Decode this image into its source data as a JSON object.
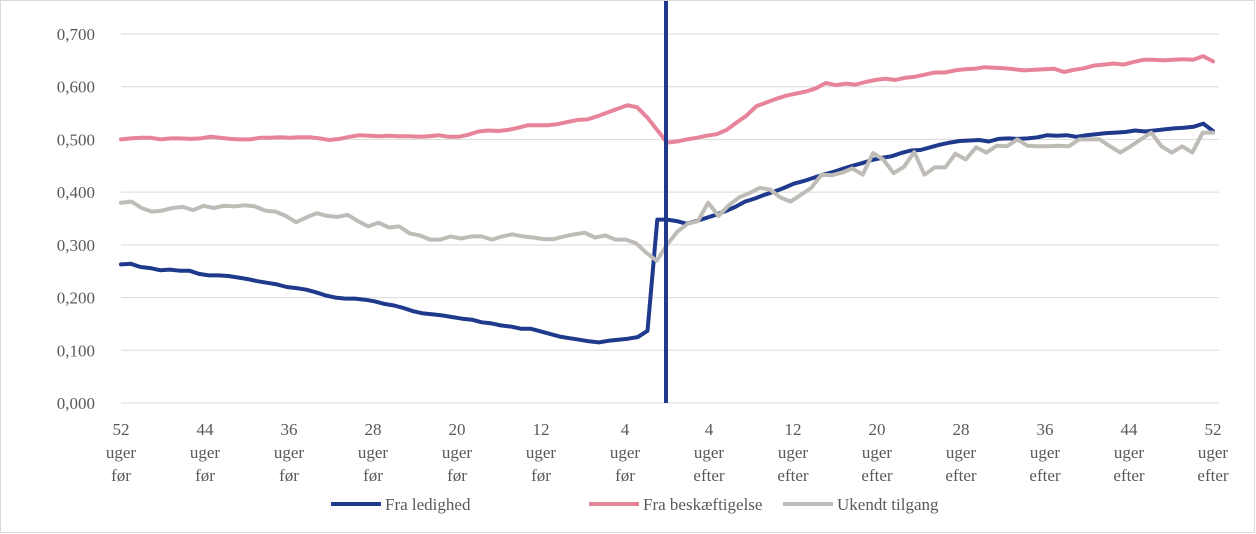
{
  "chart_data": {
    "type": "line",
    "title": "",
    "xlabel": "",
    "ylabel": "",
    "ylim": [
      0,
      0.7
    ],
    "yticks": [
      "0,000",
      "0,100",
      "0,200",
      "0,300",
      "0,400",
      "0,500",
      "0,600",
      "0,700"
    ],
    "grid": true,
    "legend_position": "bottom",
    "x_tick_labels": [
      {
        "num": "52",
        "l1": "uger",
        "l2": "før"
      },
      {
        "num": "44",
        "l1": "uger",
        "l2": "før"
      },
      {
        "num": "36",
        "l1": "uger",
        "l2": "før"
      },
      {
        "num": "28",
        "l1": "uger",
        "l2": "før"
      },
      {
        "num": "20",
        "l1": "uger",
        "l2": "før"
      },
      {
        "num": "12",
        "l1": "uger",
        "l2": "før"
      },
      {
        "num": "4",
        "l1": "uger",
        "l2": "før"
      },
      {
        "num": "4",
        "l1": "uger",
        "l2": "efter"
      },
      {
        "num": "12",
        "l1": "uger",
        "l2": "efter"
      },
      {
        "num": "20",
        "l1": "uger",
        "l2": "efter"
      },
      {
        "num": "28",
        "l1": "uger",
        "l2": "efter"
      },
      {
        "num": "36",
        "l1": "uger",
        "l2": "efter"
      },
      {
        "num": "44",
        "l1": "uger",
        "l2": "efter"
      },
      {
        "num": "52",
        "l1": "uger",
        "l2": "efter"
      }
    ],
    "series": [
      {
        "name": "Fra ledighed",
        "color": "#1f3a8c",
        "values": [
          0.263,
          0.264,
          0.258,
          0.256,
          0.252,
          0.253,
          0.251,
          0.251,
          0.245,
          0.242,
          0.242,
          0.241,
          0.238,
          0.235,
          0.231,
          0.228,
          0.225,
          0.22,
          0.218,
          0.215,
          0.21,
          0.204,
          0.2,
          0.198,
          0.198,
          0.196,
          0.193,
          0.188,
          0.185,
          0.18,
          0.174,
          0.17,
          0.168,
          0.166,
          0.163,
          0.16,
          0.158,
          0.153,
          0.151,
          0.147,
          0.145,
          0.141,
          0.141,
          0.136,
          0.131,
          0.126,
          0.123,
          0.12,
          0.117,
          0.115,
          0.118,
          0.12,
          0.122,
          0.125,
          0.137,
          0.348,
          0.348,
          0.345,
          0.34,
          0.345,
          0.351,
          0.357,
          0.364,
          0.372,
          0.382,
          0.388,
          0.395,
          0.401,
          0.408,
          0.416,
          0.421,
          0.427,
          0.433,
          0.438,
          0.444,
          0.45,
          0.455,
          0.461,
          0.465,
          0.468,
          0.474,
          0.479,
          0.48,
          0.485,
          0.49,
          0.494,
          0.497,
          0.498,
          0.499,
          0.496,
          0.501,
          0.502,
          0.501,
          0.502,
          0.504,
          0.508,
          0.507,
          0.508,
          0.505,
          0.508,
          0.51,
          0.512,
          0.513,
          0.514,
          0.517,
          0.515,
          0.517,
          0.519,
          0.521,
          0.522,
          0.524,
          0.53,
          0.516
        ]
      },
      {
        "name": "Fra beskæftigelse",
        "color": "#e8849a",
        "values": [
          0.5,
          0.502,
          0.503,
          0.503,
          0.5,
          0.502,
          0.502,
          0.501,
          0.502,
          0.505,
          0.503,
          0.501,
          0.5,
          0.5,
          0.503,
          0.503,
          0.504,
          0.503,
          0.504,
          0.504,
          0.502,
          0.499,
          0.501,
          0.505,
          0.508,
          0.507,
          0.506,
          0.507,
          0.506,
          0.506,
          0.505,
          0.506,
          0.508,
          0.505,
          0.505,
          0.509,
          0.515,
          0.517,
          0.516,
          0.518,
          0.522,
          0.527,
          0.527,
          0.527,
          0.529,
          0.533,
          0.537,
          0.538,
          0.544,
          0.551,
          0.558,
          0.565,
          0.561,
          0.542,
          0.518,
          0.494,
          0.496,
          0.5,
          0.503,
          0.507,
          0.51,
          0.518,
          0.532,
          0.545,
          0.563,
          0.57,
          0.577,
          0.583,
          0.587,
          0.591,
          0.597,
          0.607,
          0.603,
          0.606,
          0.604,
          0.609,
          0.613,
          0.615,
          0.613,
          0.617,
          0.619,
          0.623,
          0.627,
          0.627,
          0.631,
          0.633,
          0.634,
          0.637,
          0.636,
          0.635,
          0.633,
          0.631,
          0.632,
          0.633,
          0.634,
          0.628,
          0.632,
          0.635,
          0.64,
          0.642,
          0.644,
          0.642,
          0.647,
          0.651,
          0.651,
          0.65,
          0.651,
          0.652,
          0.651,
          0.658,
          0.648
        ]
      },
      {
        "name": "Ukendt tilgang",
        "color": "#bfbcb8",
        "values": [
          0.38,
          0.382,
          0.37,
          0.363,
          0.365,
          0.37,
          0.372,
          0.366,
          0.374,
          0.37,
          0.374,
          0.373,
          0.375,
          0.373,
          0.365,
          0.363,
          0.355,
          0.343,
          0.352,
          0.36,
          0.355,
          0.353,
          0.357,
          0.345,
          0.335,
          0.342,
          0.333,
          0.335,
          0.322,
          0.318,
          0.31,
          0.31,
          0.316,
          0.312,
          0.316,
          0.316,
          0.31,
          0.316,
          0.32,
          0.316,
          0.314,
          0.311,
          0.311,
          0.316,
          0.32,
          0.323,
          0.314,
          0.318,
          0.31,
          0.31,
          0.303,
          0.285,
          0.27,
          0.3,
          0.325,
          0.34,
          0.345,
          0.38,
          0.355,
          0.375,
          0.39,
          0.398,
          0.408,
          0.405,
          0.39,
          0.382,
          0.395,
          0.408,
          0.433,
          0.432,
          0.437,
          0.445,
          0.433,
          0.474,
          0.462,
          0.436,
          0.448,
          0.476,
          0.433,
          0.447,
          0.447,
          0.473,
          0.462,
          0.485,
          0.475,
          0.488,
          0.487,
          0.5,
          0.488,
          0.487,
          0.487,
          0.488,
          0.487,
          0.5,
          0.5,
          0.5,
          0.487,
          0.475,
          0.487,
          0.5,
          0.513,
          0.487,
          0.475,
          0.487,
          0.475,
          0.513,
          0.513
        ]
      }
    ]
  }
}
